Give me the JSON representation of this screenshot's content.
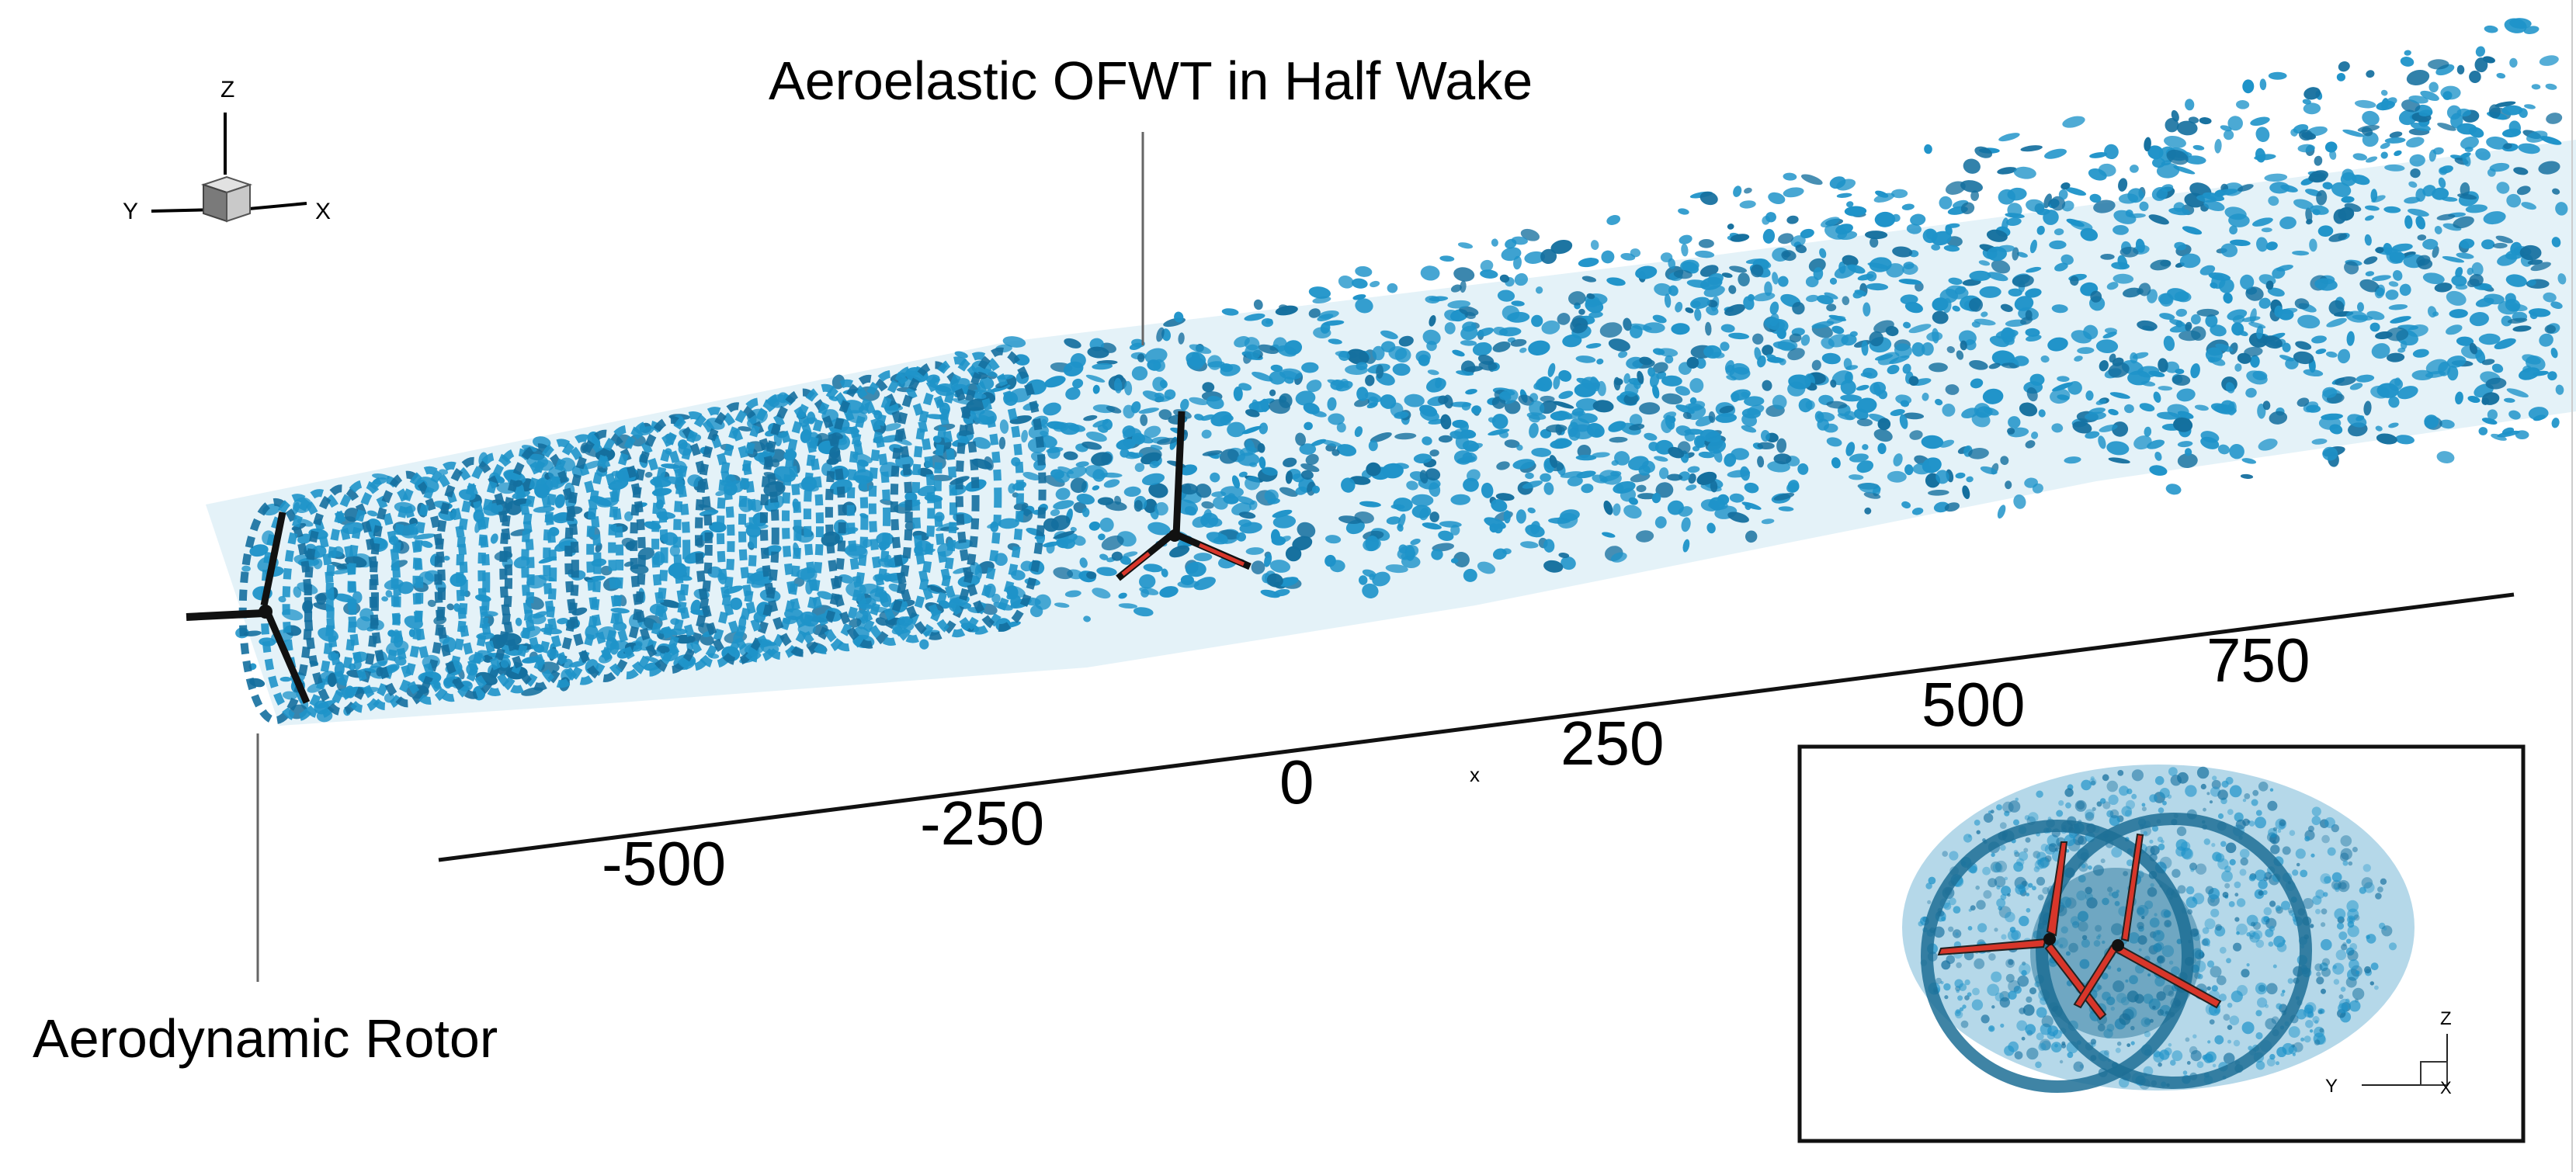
{
  "annotations": {
    "title": "Aeroelastic OFWT in Half Wake",
    "rotor_label": "Aerodynamic Rotor"
  },
  "x_axis": {
    "ticks": [
      "-500",
      "-250",
      "0",
      "250",
      "500",
      "750"
    ],
    "name": "x"
  },
  "triad_main": {
    "z": "Z",
    "y": "Y",
    "x": "X"
  },
  "triad_inset": {
    "z": "Z",
    "y": "Y",
    "x": "X"
  },
  "colors": {
    "wake": "#1e93c9",
    "wake_dark": "#146f9e",
    "blade_red": "#d8362a",
    "blade_black": "#111111",
    "axis": "#111111"
  }
}
